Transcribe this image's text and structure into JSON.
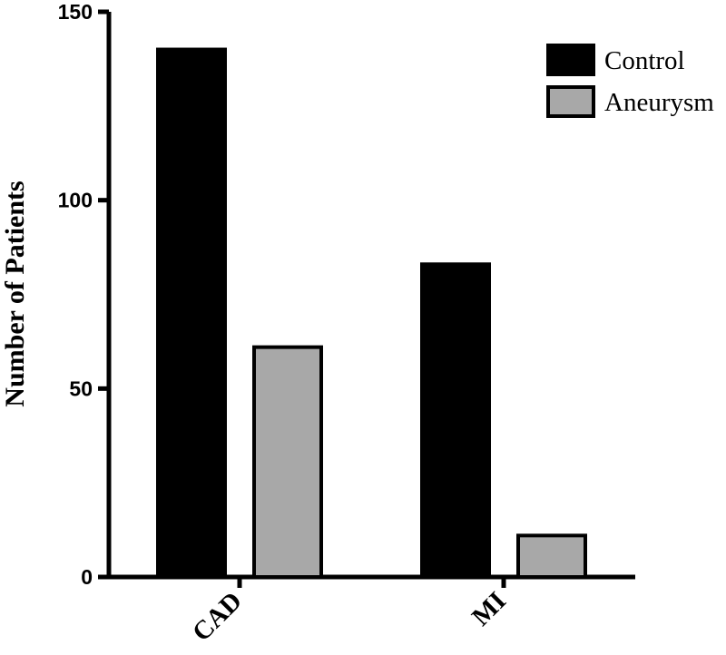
{
  "chart_data": {
    "type": "bar",
    "title": "",
    "xlabel": "",
    "ylabel": "Number of Patients",
    "categories": [
      "CAD",
      "MI"
    ],
    "series": [
      {
        "name": "Control",
        "values": [
          140,
          83
        ],
        "color": "#000000"
      },
      {
        "name": "Aneurysm",
        "values": [
          61,
          11
        ],
        "color": "#a8a8a8"
      }
    ],
    "ylim": [
      0,
      150
    ],
    "yticks": [
      0,
      50,
      100,
      150
    ],
    "grid": false,
    "legend": "top-right"
  }
}
